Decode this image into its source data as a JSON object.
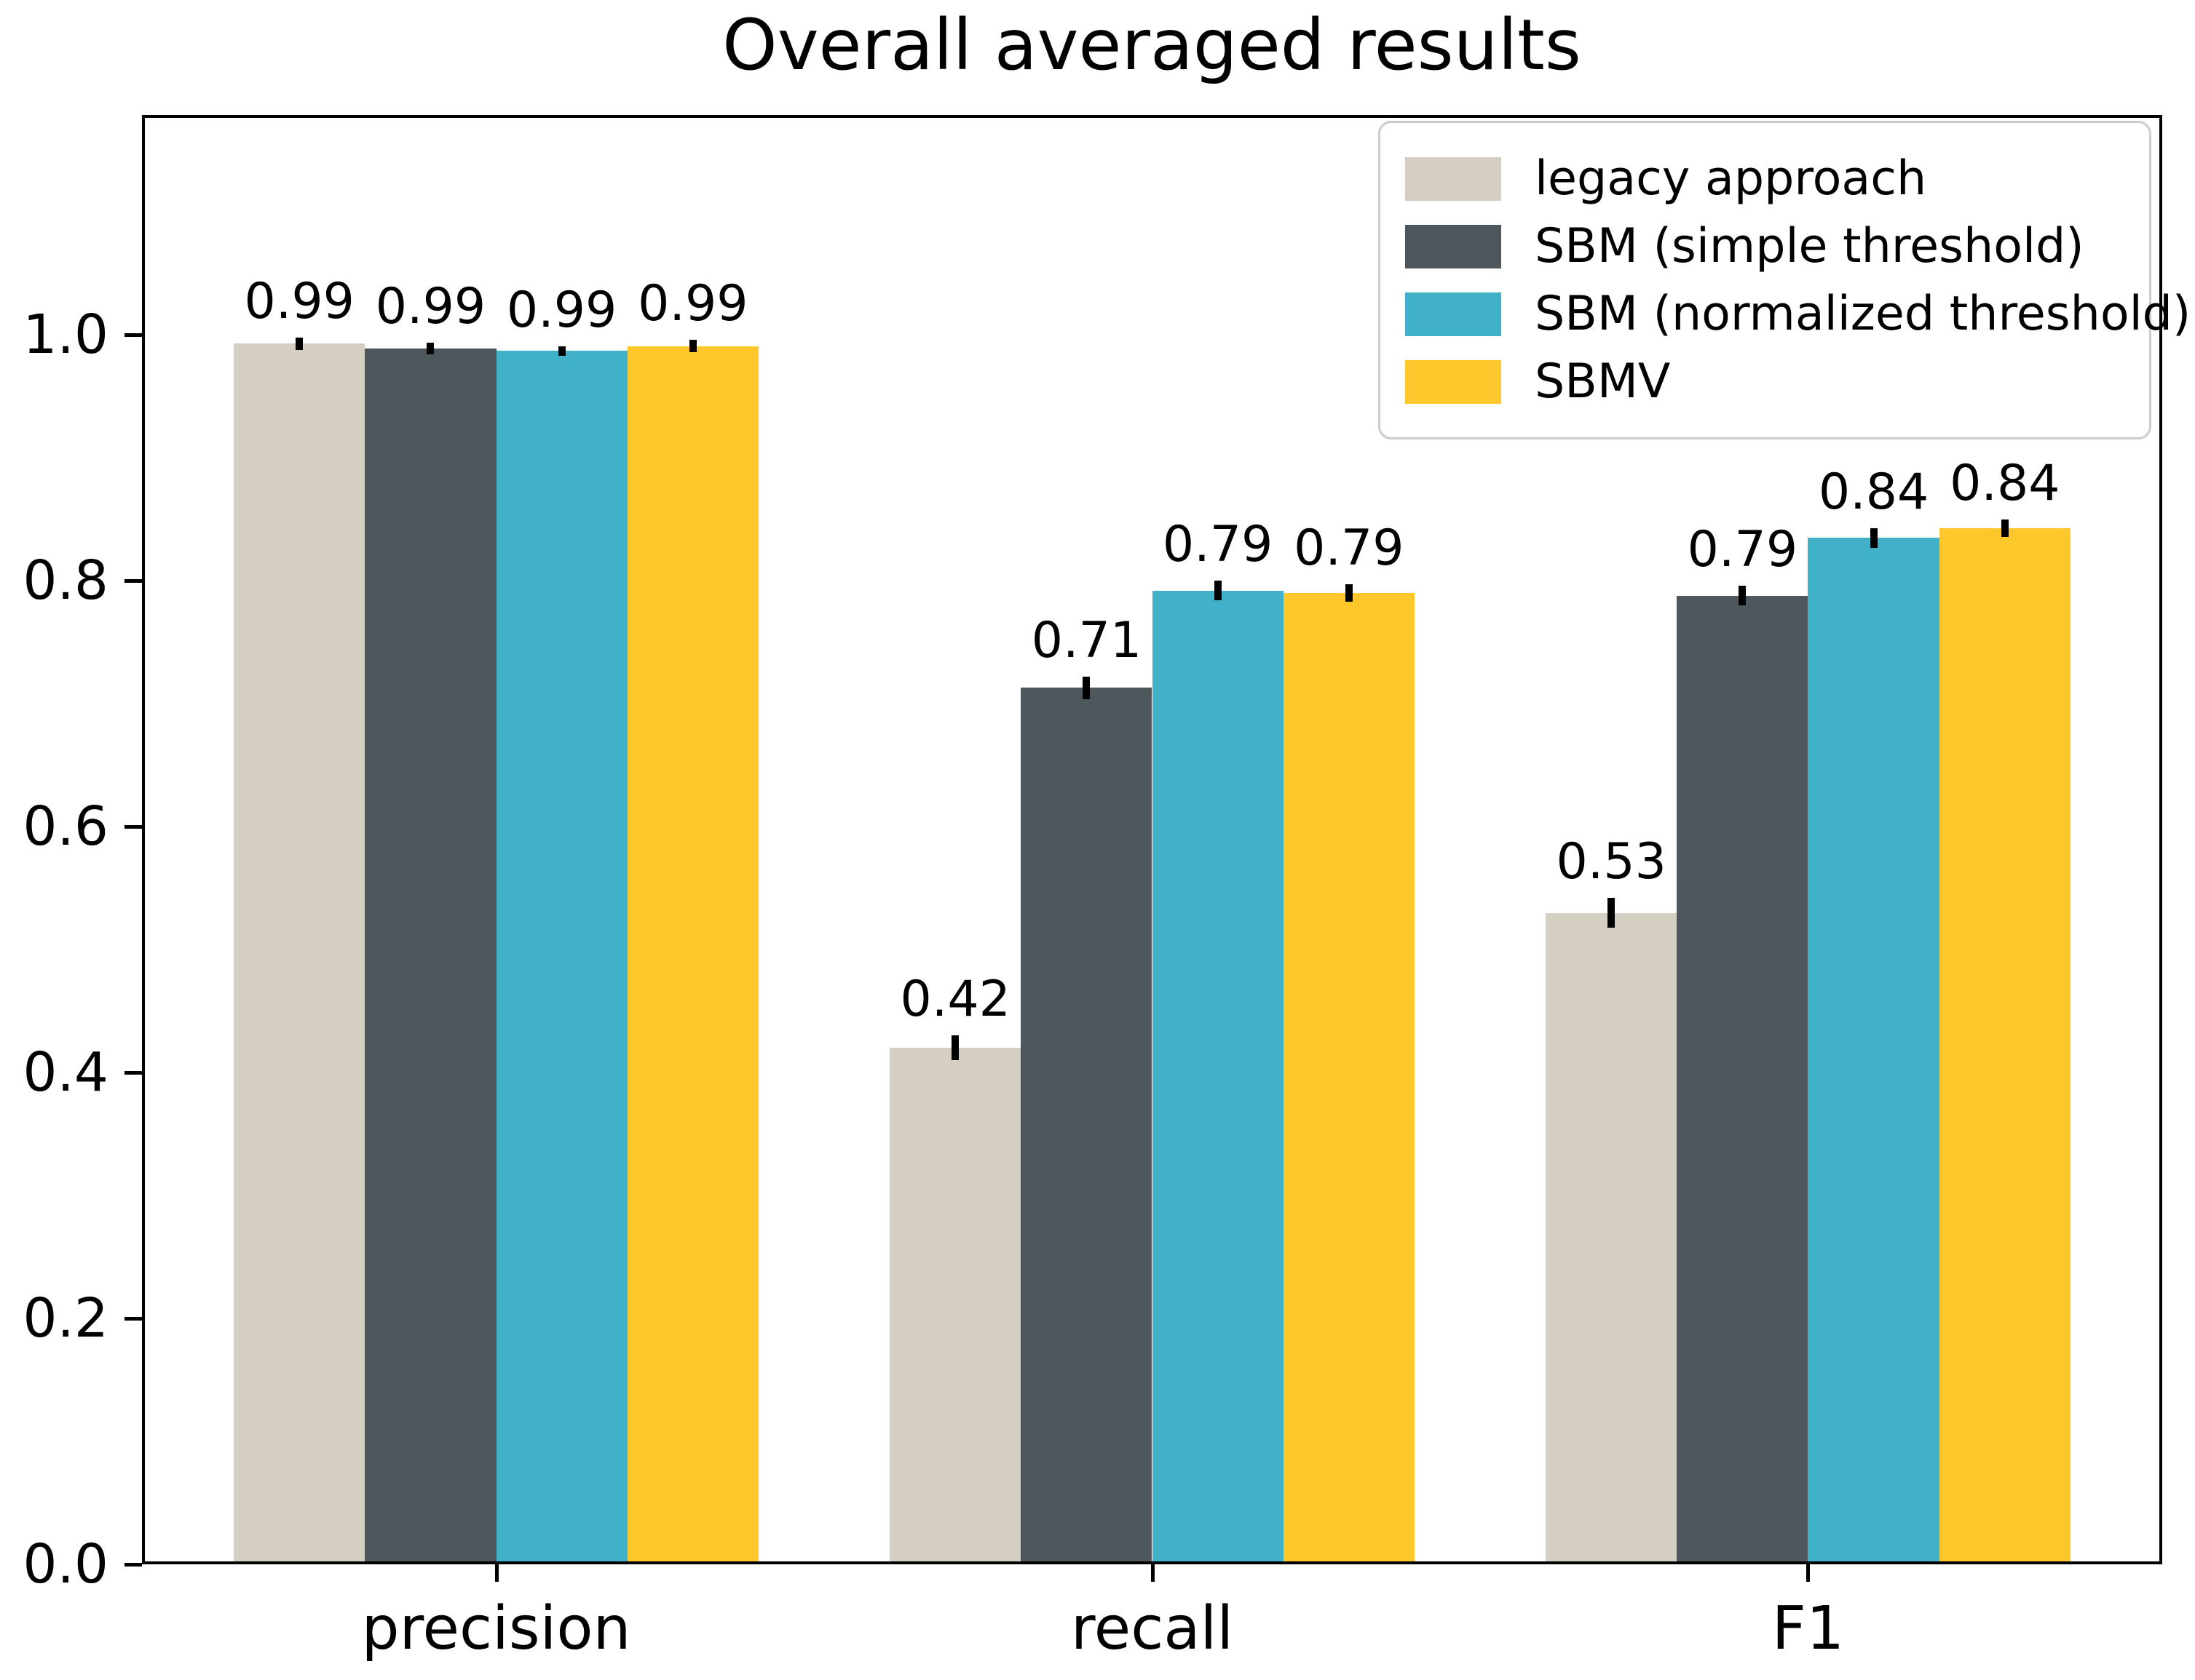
{
  "chart_data": {
    "type": "bar",
    "title": "Overall averaged results",
    "categories": [
      "precision",
      "recall",
      "F1"
    ],
    "series": [
      {
        "name": "legacy approach",
        "color": "#D5CFC3",
        "values": [
          0.993,
          0.42,
          0.53
        ],
        "errors": [
          0.005,
          0.01,
          0.012
        ],
        "labels": [
          "0.99",
          "0.42",
          "0.53"
        ]
      },
      {
        "name": "SBM (simple threshold)",
        "color": "#4E575B",
        "values": [
          0.989,
          0.713,
          0.788
        ],
        "errors": [
          0.005,
          0.009,
          0.008
        ],
        "labels": [
          "0.99",
          "0.71",
          "0.79"
        ]
      },
      {
        "name": "SBM (normalized threshold)",
        "color": "#41B0C9",
        "values": [
          0.987,
          0.792,
          0.835
        ],
        "errors": [
          0.004,
          0.008,
          0.008
        ],
        "labels": [
          "0.99",
          "0.79",
          "0.84"
        ]
      },
      {
        "name": "SBMV",
        "color": "#FEC72B",
        "values": [
          0.991,
          0.79,
          0.843
        ],
        "errors": [
          0.005,
          0.007,
          0.007
        ],
        "labels": [
          "0.99",
          "0.79",
          "0.84"
        ]
      }
    ],
    "xlabel": "",
    "ylabel": "",
    "ylim": [
      0,
      1.179
    ],
    "yticks": [
      "0.0",
      "0.2",
      "0.4",
      "0.6",
      "0.8",
      "1.0"
    ],
    "grid": false,
    "legend_position": "upper right",
    "axis_color": "#000000",
    "legend_border_color": "#cccccc",
    "background_color": "#ffffff"
  }
}
